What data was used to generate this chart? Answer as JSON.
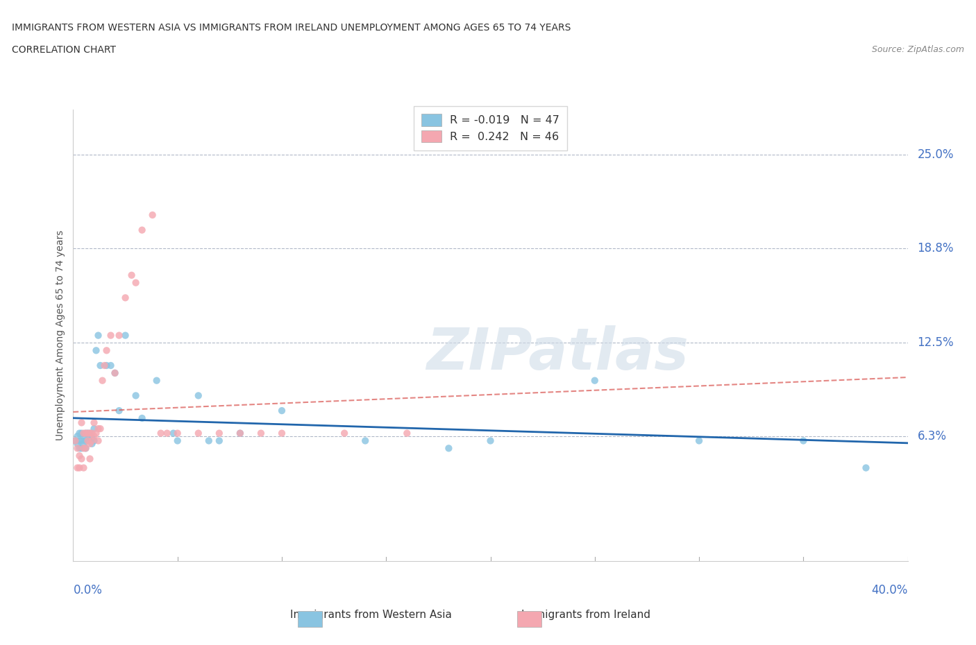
{
  "title_line1": "IMMIGRANTS FROM WESTERN ASIA VS IMMIGRANTS FROM IRELAND UNEMPLOYMENT AMONG AGES 65 TO 74 YEARS",
  "title_line2": "CORRELATION CHART",
  "source": "Source: ZipAtlas.com",
  "ylabel": "Unemployment Among Ages 65 to 74 years",
  "ytick_labels": [
    "25.0%",
    "18.8%",
    "12.5%",
    "6.3%"
  ],
  "ytick_values": [
    0.25,
    0.188,
    0.125,
    0.063
  ],
  "color_wa": "#89c4e1",
  "color_ire": "#f4a7b0",
  "color_trend_wa": "#2166ac",
  "color_trend_ire": "#d9534f",
  "watermark": "ZIPatlas",
  "xmin": 0.0,
  "xmax": 0.4,
  "ymin": -0.02,
  "ymax": 0.28,
  "legend_label_wa": "R = -0.019   N = 47",
  "legend_label_ire": "R =  0.242   N = 46",
  "wa_x": [
    0.001,
    0.002,
    0.002,
    0.003,
    0.003,
    0.003,
    0.004,
    0.004,
    0.004,
    0.005,
    0.005,
    0.006,
    0.006,
    0.006,
    0.007,
    0.007,
    0.008,
    0.008,
    0.009,
    0.009,
    0.01,
    0.01,
    0.011,
    0.012,
    0.013,
    0.016,
    0.018,
    0.02,
    0.022,
    0.025,
    0.03,
    0.033,
    0.04,
    0.048,
    0.05,
    0.06,
    0.065,
    0.07,
    0.08,
    0.1,
    0.14,
    0.18,
    0.2,
    0.25,
    0.3,
    0.35,
    0.38
  ],
  "wa_y": [
    0.06,
    0.063,
    0.058,
    0.065,
    0.06,
    0.055,
    0.065,
    0.06,
    0.055,
    0.063,
    0.058,
    0.065,
    0.06,
    0.055,
    0.065,
    0.06,
    0.065,
    0.063,
    0.062,
    0.058,
    0.068,
    0.06,
    0.12,
    0.13,
    0.11,
    0.11,
    0.11,
    0.105,
    0.08,
    0.13,
    0.09,
    0.075,
    0.1,
    0.065,
    0.06,
    0.09,
    0.06,
    0.06,
    0.065,
    0.08,
    0.06,
    0.055,
    0.06,
    0.1,
    0.06,
    0.06,
    0.042
  ],
  "ire_x": [
    0.001,
    0.002,
    0.002,
    0.003,
    0.003,
    0.004,
    0.004,
    0.005,
    0.005,
    0.005,
    0.006,
    0.006,
    0.007,
    0.007,
    0.008,
    0.008,
    0.008,
    0.009,
    0.009,
    0.01,
    0.01,
    0.011,
    0.012,
    0.012,
    0.013,
    0.014,
    0.015,
    0.016,
    0.018,
    0.02,
    0.022,
    0.025,
    0.028,
    0.03,
    0.033,
    0.038,
    0.042,
    0.045,
    0.05,
    0.06,
    0.07,
    0.08,
    0.09,
    0.1,
    0.13,
    0.16
  ],
  "ire_y": [
    0.06,
    0.055,
    0.042,
    0.05,
    0.042,
    0.072,
    0.048,
    0.065,
    0.055,
    0.042,
    0.065,
    0.055,
    0.065,
    0.06,
    0.065,
    0.058,
    0.048,
    0.065,
    0.06,
    0.072,
    0.063,
    0.065,
    0.068,
    0.06,
    0.068,
    0.1,
    0.11,
    0.12,
    0.13,
    0.105,
    0.13,
    0.155,
    0.17,
    0.165,
    0.2,
    0.21,
    0.065,
    0.065,
    0.065,
    0.065,
    0.065,
    0.065,
    0.065,
    0.065,
    0.065,
    0.065
  ]
}
